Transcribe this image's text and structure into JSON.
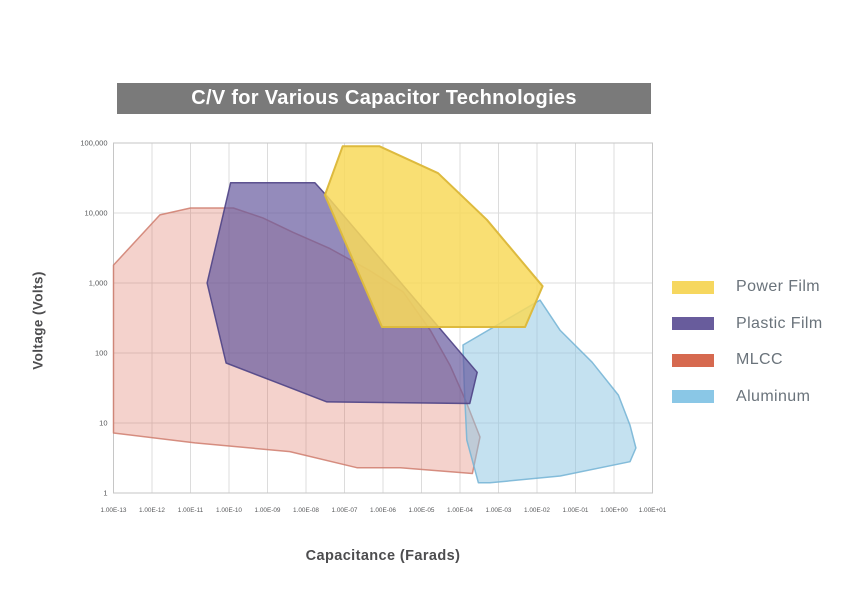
{
  "chart": {
    "title": "C/V for Various Capacitor Technologies",
    "title_bar_color": "#7a7a7a",
    "x_axis_title": "Capacitance (Farads)",
    "y_axis_title": "Voltage (Volts)"
  },
  "legend": {
    "items": [
      {
        "id": "power-film",
        "label": "Power Film",
        "color": "#f6d75f"
      },
      {
        "id": "plastic-film",
        "label": "Plastic Film",
        "color": "#685c9c"
      },
      {
        "id": "mlcc",
        "label": "MLCC",
        "color": "#d6694f"
      },
      {
        "id": "aluminum",
        "label": "Aluminum",
        "color": "#8ac7e6"
      }
    ]
  },
  "chart_data": {
    "type": "area",
    "title": "C/V for Various Capacitor Technologies",
    "xlabel": "Capacitance (Farads)",
    "ylabel": "Voltage (Volts)",
    "x_scale": "log",
    "y_scale": "log",
    "xlim": [
      1e-13,
      10.0
    ],
    "ylim": [
      1,
      100000
    ],
    "grid": true,
    "legend_position": "right",
    "x_tick_labels": [
      "1.00E-13",
      "1.00E-12",
      "1.00E-11",
      "1.00E-10",
      "1.00E-09",
      "1.00E-08",
      "1.00E-07",
      "1.00E-06",
      "1.00E-05",
      "1.00E-04",
      "1.00E-03",
      "1.00E-02",
      "1.00E-01",
      "1.00E+00",
      "1.00E+01"
    ],
    "y_tick_labels": [
      "100,000",
      "10,000",
      "1,000",
      "100",
      "10",
      "1"
    ],
    "y_tick_values": [
      100000,
      10000,
      1000,
      100,
      10,
      1
    ],
    "series": [
      {
        "name": "MLCC",
        "fill": "#d96a55",
        "fill_opacity": 0.3,
        "stroke": "#cf7d6d",
        "stroke_opacity": 0.85,
        "stroke_width": 1.5,
        "points": [
          [
            1e-13,
            1800
          ],
          [
            1.6e-12,
            9400
          ],
          [
            1e-11,
            11800
          ],
          [
            1.3e-10,
            11800
          ],
          [
            7.6e-10,
            8500
          ],
          [
            4.6e-09,
            5300
          ],
          [
            4.2e-08,
            3100
          ],
          [
            4.6e-07,
            1500
          ],
          [
            3.3e-06,
            750
          ],
          [
            1.7e-05,
            210
          ],
          [
            5.5e-05,
            67
          ],
          [
            0.00014,
            21
          ],
          [
            0.00033,
            6.3
          ],
          [
            0.00021,
            1.9
          ],
          [
            2.8e-06,
            2.3
          ],
          [
            2.1e-07,
            2.3
          ],
          [
            3.8e-09,
            3.9
          ],
          [
            1.3e-11,
            5.2
          ],
          [
            1e-13,
            7.2
          ]
        ]
      },
      {
        "name": "Aluminum",
        "fill": "#89c4e1",
        "fill_opacity": 0.5,
        "stroke": "#79b6d6",
        "stroke_opacity": 0.9,
        "stroke_width": 1.5,
        "points": [
          [
            0.012,
            570
          ],
          [
            0.04,
            210
          ],
          [
            0.27,
            74
          ],
          [
            1.3,
            25
          ],
          [
            2.6,
            9.3
          ],
          [
            3.7,
            4.4
          ],
          [
            2.6,
            2.8
          ],
          [
            0.04,
            1.75
          ],
          [
            0.0006,
            1.4
          ],
          [
            0.0003,
            1.4
          ],
          [
            0.00015,
            5.7
          ],
          [
            0.00013,
            30
          ],
          [
            0.00012,
            130
          ]
        ]
      },
      {
        "name": "Plastic Film",
        "fill": "#675a9e",
        "fill_opacity": 0.7,
        "stroke": "#4f4486",
        "stroke_opacity": 0.9,
        "stroke_width": 1.5,
        "points": [
          [
            1.1e-10,
            27000
          ],
          [
            1.7e-08,
            27000
          ],
          [
            3.5e-08,
            17500
          ],
          [
            0.00028,
            53
          ],
          [
            0.00018,
            19
          ],
          [
            3.5e-08,
            20
          ],
          [
            8.4e-11,
            72
          ],
          [
            2.7e-11,
            1000
          ]
        ]
      },
      {
        "name": "Power Film",
        "fill": "#f8d95a",
        "fill_opacity": 0.85,
        "stroke": "#ddba3e",
        "stroke_opacity": 1,
        "stroke_width": 2,
        "points": [
          [
            9e-08,
            90000
          ],
          [
            8e-07,
            90000
          ],
          [
            2.7e-05,
            37000
          ],
          [
            0.0005,
            8000
          ],
          [
            0.014,
            900
          ],
          [
            0.0049,
            235
          ],
          [
            9.4e-07,
            235
          ],
          [
            3.1e-08,
            18000
          ]
        ]
      }
    ]
  }
}
